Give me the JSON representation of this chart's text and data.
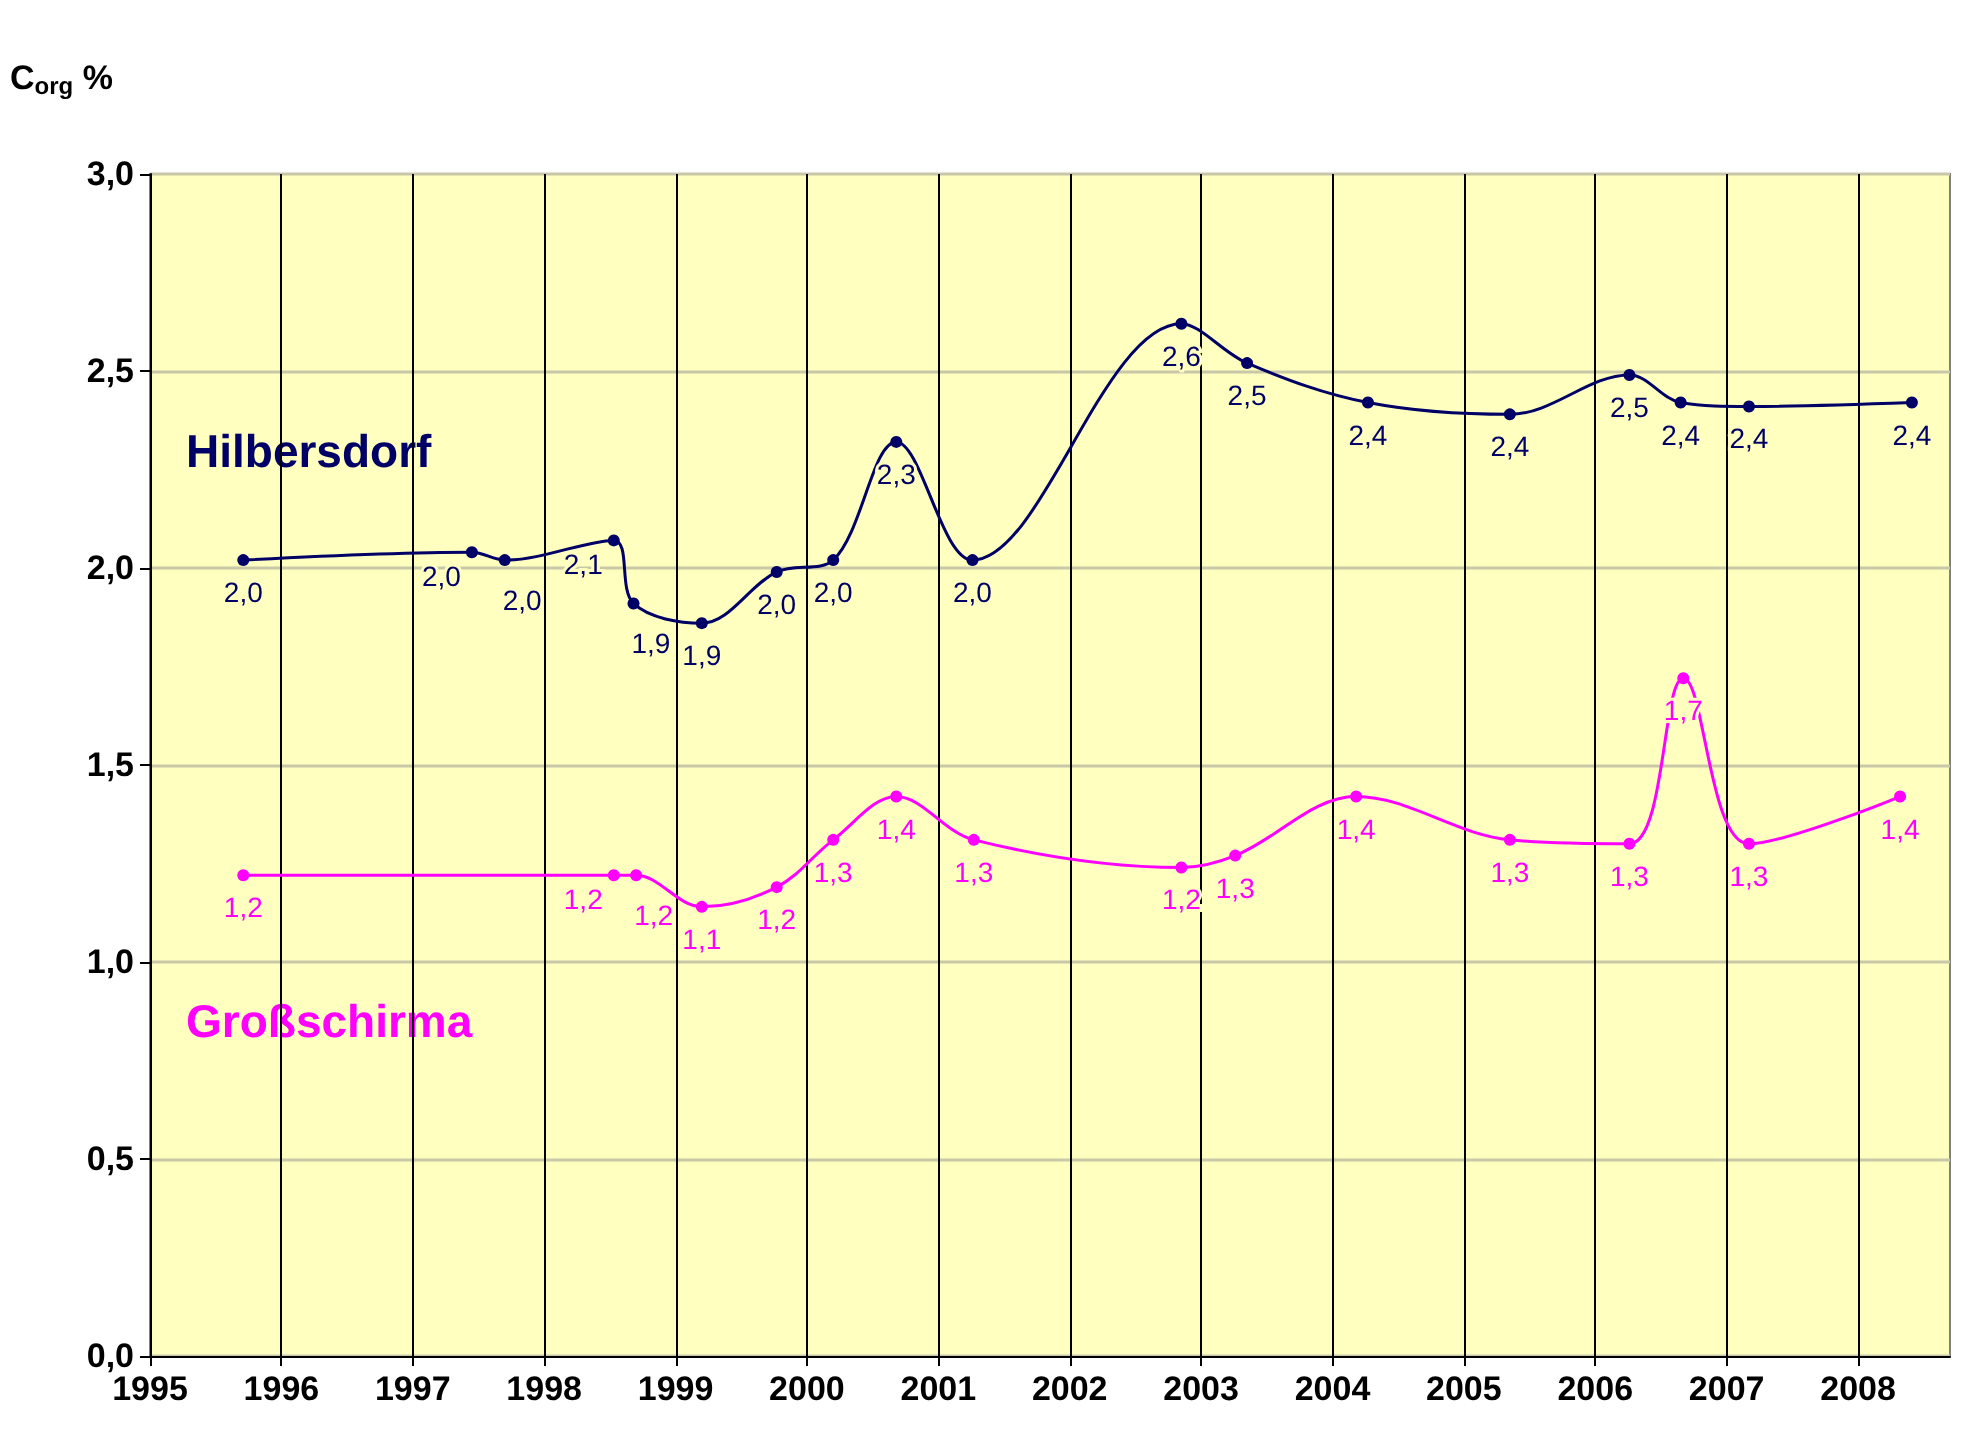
{
  "chart_data": {
    "type": "line",
    "ylabel": "C$_{org}$ %",
    "xlim": [
      1995,
      2008.7
    ],
    "xticks": [
      1995,
      1996,
      1997,
      1998,
      1999,
      2000,
      2001,
      2002,
      2003,
      2004,
      2005,
      2006,
      2007,
      2008
    ],
    "ylim": [
      0,
      3
    ],
    "yticks": [
      {
        "value": 0,
        "label": "0,0"
      },
      {
        "value": 0.5,
        "label": "0,5"
      },
      {
        "value": 1,
        "label": "1,0"
      },
      {
        "value": 1.5,
        "label": "1,5"
      },
      {
        "value": 2,
        "label": "2,0"
      },
      {
        "value": 2.5,
        "label": "2,5"
      },
      {
        "value": 3,
        "label": "3,0"
      }
    ],
    "grid": true,
    "legend": false,
    "marker": "circle",
    "line_style": "solid",
    "series": [
      {
        "name": "Hilbersdorf",
        "color": "#000066",
        "x": [
          1995.71,
          1997.45,
          1997.7,
          1998.53,
          1998.68,
          1999.2,
          1999.77,
          2000.2,
          2000.68,
          2001.26,
          2002.85,
          2003.35,
          2004.27,
          2005.35,
          2006.26,
          2006.65,
          2007.17,
          2008.41
        ],
        "values": [
          2.02,
          2.04,
          2.02,
          2.07,
          1.91,
          1.86,
          1.99,
          2.02,
          2.32,
          2.02,
          2.62,
          2.52,
          2.42,
          2.39,
          2.49,
          2.42,
          2.41,
          2.42
        ],
        "value_labels": [
          "2,0",
          "2,0",
          "2,0",
          "2,1",
          "1,9",
          "1,9",
          "2,0",
          "2,0",
          "2,3",
          "2,0",
          "2,6",
          "2,5",
          "2,4",
          "2,4",
          "2,5",
          "2,4",
          "2,4",
          "2,4"
        ]
      },
      {
        "name": "Großschirma",
        "color": "#ff00ff",
        "x": [
          1995.71,
          1998.53,
          1998.7,
          1999.2,
          1999.77,
          2000.2,
          2000.68,
          2001.27,
          2002.85,
          2003.26,
          2004.18,
          2005.35,
          2006.26,
          2006.67,
          2007.17,
          2008.32
        ],
        "values": [
          1.22,
          1.22,
          1.22,
          1.14,
          1.19,
          1.31,
          1.42,
          1.31,
          1.24,
          1.27,
          1.42,
          1.31,
          1.3,
          1.72,
          1.3,
          1.42
        ],
        "value_labels": [
          "1,2",
          "1,2",
          "1,2",
          "1,1",
          "1,2",
          "1,3",
          "1,4",
          "1,3",
          "1,2",
          "1,3",
          "1,4",
          "1,3",
          "1,3",
          "1,7",
          "1,3",
          "1,4"
        ]
      }
    ]
  }
}
